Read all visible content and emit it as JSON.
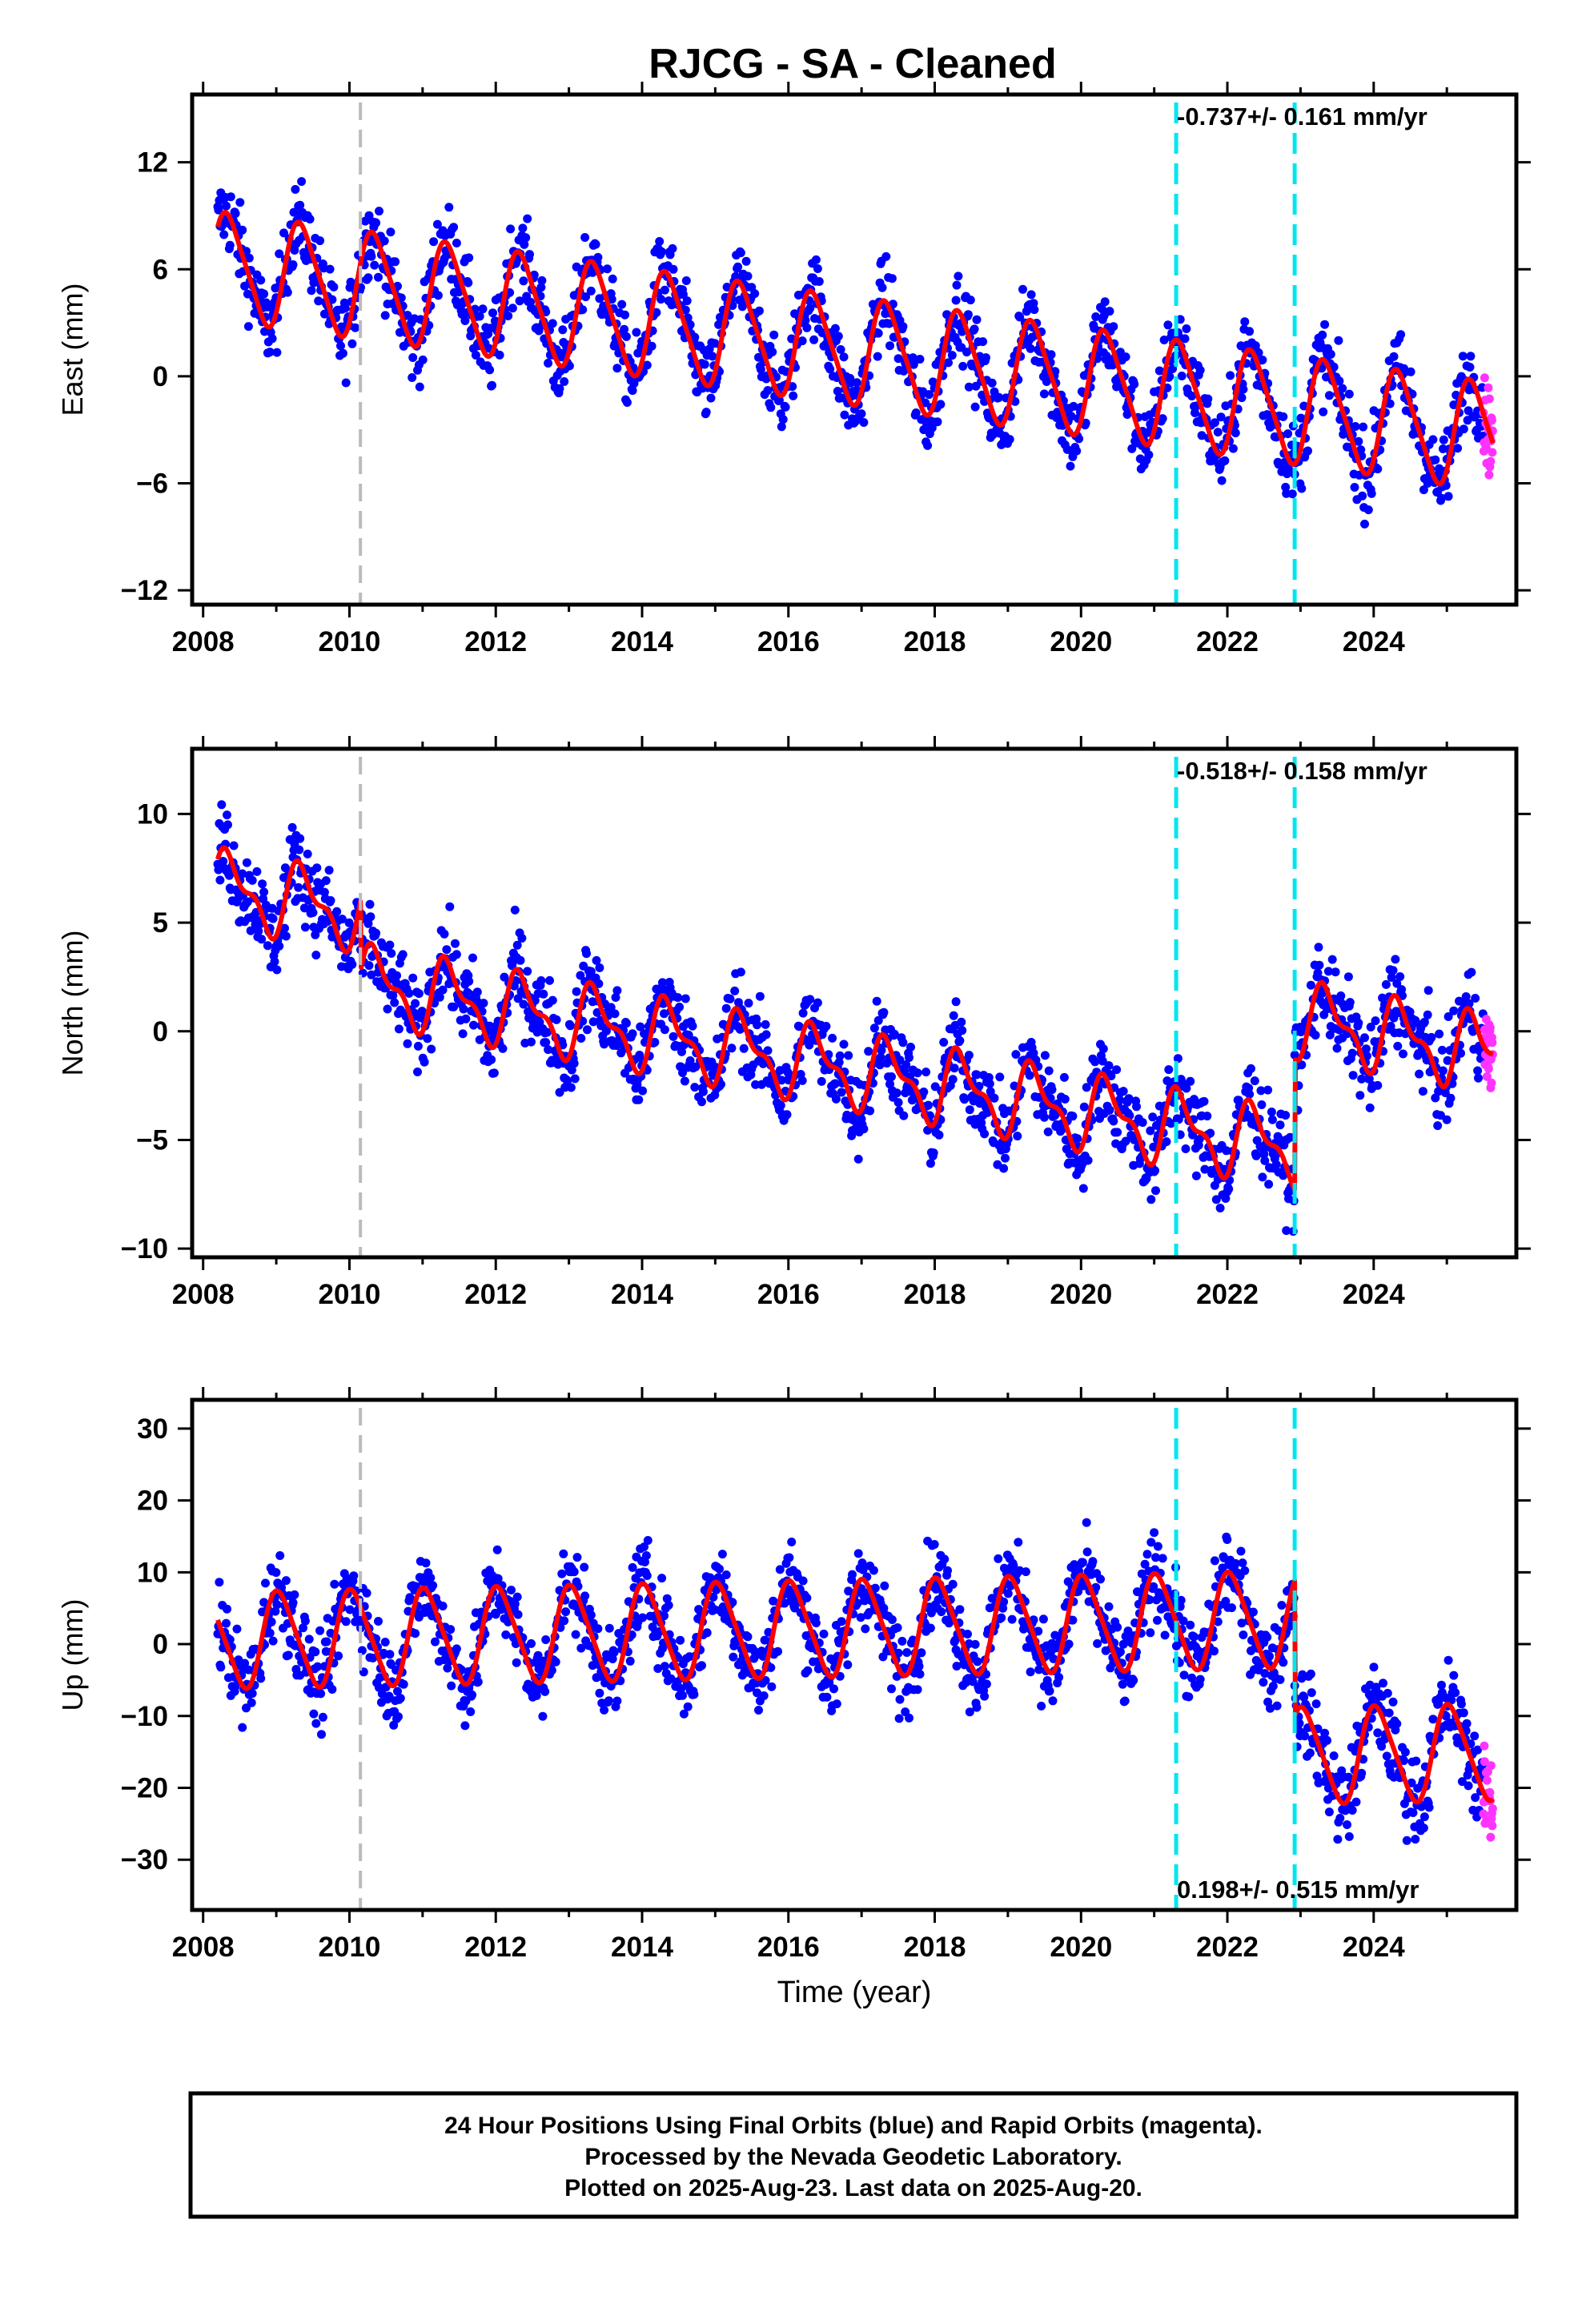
{
  "title": "RJCG  - SA - Cleaned",
  "footer": {
    "line1": "24 Hour Positions Using Final Orbits (blue) and Rapid Orbits (magenta).",
    "line2": "Processed by the Nevada Geodetic Laboratory.",
    "line3": "Plotted on 2025-Aug-23. Last data on 2025-Aug-20."
  },
  "colors": {
    "final_orbits": "#0000ff",
    "rapid_orbits": "#ff33ff",
    "model": "#ff0000",
    "equipment_change": "#00e5ee",
    "other_event": "#bbbbbb"
  },
  "chart_data": [
    {
      "type": "scatter",
      "component": "East",
      "ylabel": "East (mm)",
      "xlabel": "",
      "xlim": [
        2007.85,
        2025.95
      ],
      "ylim": [
        -12.8,
        15.8
      ],
      "yticks": [
        -12,
        -6,
        0,
        6,
        12
      ],
      "xticks": [
        2008,
        2010,
        2012,
        2014,
        2016,
        2018,
        2020,
        2022,
        2024
      ],
      "rate_label": "-0.737+/- 0.161 mm/yr",
      "rate_position": "top-right",
      "grey_events": [
        2010.15
      ],
      "cyan_events": [
        2021.3,
        2022.92
      ],
      "model_params": {
        "start": 6.2,
        "slope": -0.55,
        "amp": 2.9,
        "amp2": 0.5,
        "phase": 0.1,
        "spread": 1.6,
        "offsets": []
      },
      "series": [
        {
          "name": "Final Orbits (blue)",
          "x_range": [
            2008.2,
            2025.5
          ]
        },
        {
          "name": "Rapid Orbits (magenta)",
          "x_range": [
            2025.5,
            2025.63
          ]
        }
      ]
    },
    {
      "type": "scatter",
      "component": "North",
      "ylabel": "North (mm)",
      "xlabel": "",
      "xlim": [
        2007.85,
        2025.95
      ],
      "ylim": [
        -10.4,
        13.0
      ],
      "yticks": [
        -10,
        -5,
        0,
        5,
        10
      ],
      "xticks": [
        2008,
        2010,
        2012,
        2014,
        2016,
        2018,
        2020,
        2022,
        2024
      ],
      "rate_label": "-0.518+/- 0.158 mm/yr",
      "rate_position": "top-right",
      "grey_events": [
        2010.15
      ],
      "cyan_events": [
        2021.3,
        2022.92
      ],
      "model_params": {
        "start": 6.6,
        "slope": -0.6,
        "amp": 1.5,
        "amp2": 0.7,
        "phase": 0.12,
        "spread": 1.4,
        "offsets": [
          [
            2010.15,
            -3.2
          ],
          [
            2022.92,
            6.0
          ]
        ]
      },
      "series": [
        {
          "name": "Final Orbits (blue)",
          "x_range": [
            2008.2,
            2025.5
          ]
        },
        {
          "name": "Rapid Orbits (magenta)",
          "x_range": [
            2025.5,
            2025.63
          ]
        }
      ]
    },
    {
      "type": "scatter",
      "component": "Up",
      "ylabel": "Up (mm)",
      "xlabel": "Time (year)",
      "xlim": [
        2007.85,
        2025.95
      ],
      "ylim": [
        -37,
        34
      ],
      "yticks": [
        -30,
        -20,
        -10,
        0,
        10,
        20,
        30
      ],
      "xticks": [
        2008,
        2010,
        2012,
        2014,
        2016,
        2018,
        2020,
        2022,
        2024
      ],
      "rate_label": "0.198+/- 0.515 mm/yr",
      "rate_position": "bottom-right",
      "grey_events": [
        2010.15
      ],
      "cyan_events": [
        2021.3,
        2022.92
      ],
      "model_params": {
        "start": 0.5,
        "slope": 0.2,
        "amp": 6.5,
        "amp2": 1.0,
        "phase": 0.8,
        "spread": 4.2,
        "offsets": [
          [
            2022.92,
            -19.0
          ]
        ]
      },
      "series": [
        {
          "name": "Final Orbits (blue)",
          "x_range": [
            2008.2,
            2025.5
          ]
        },
        {
          "name": "Rapid Orbits (magenta)",
          "x_range": [
            2025.5,
            2025.63
          ]
        }
      ]
    }
  ]
}
